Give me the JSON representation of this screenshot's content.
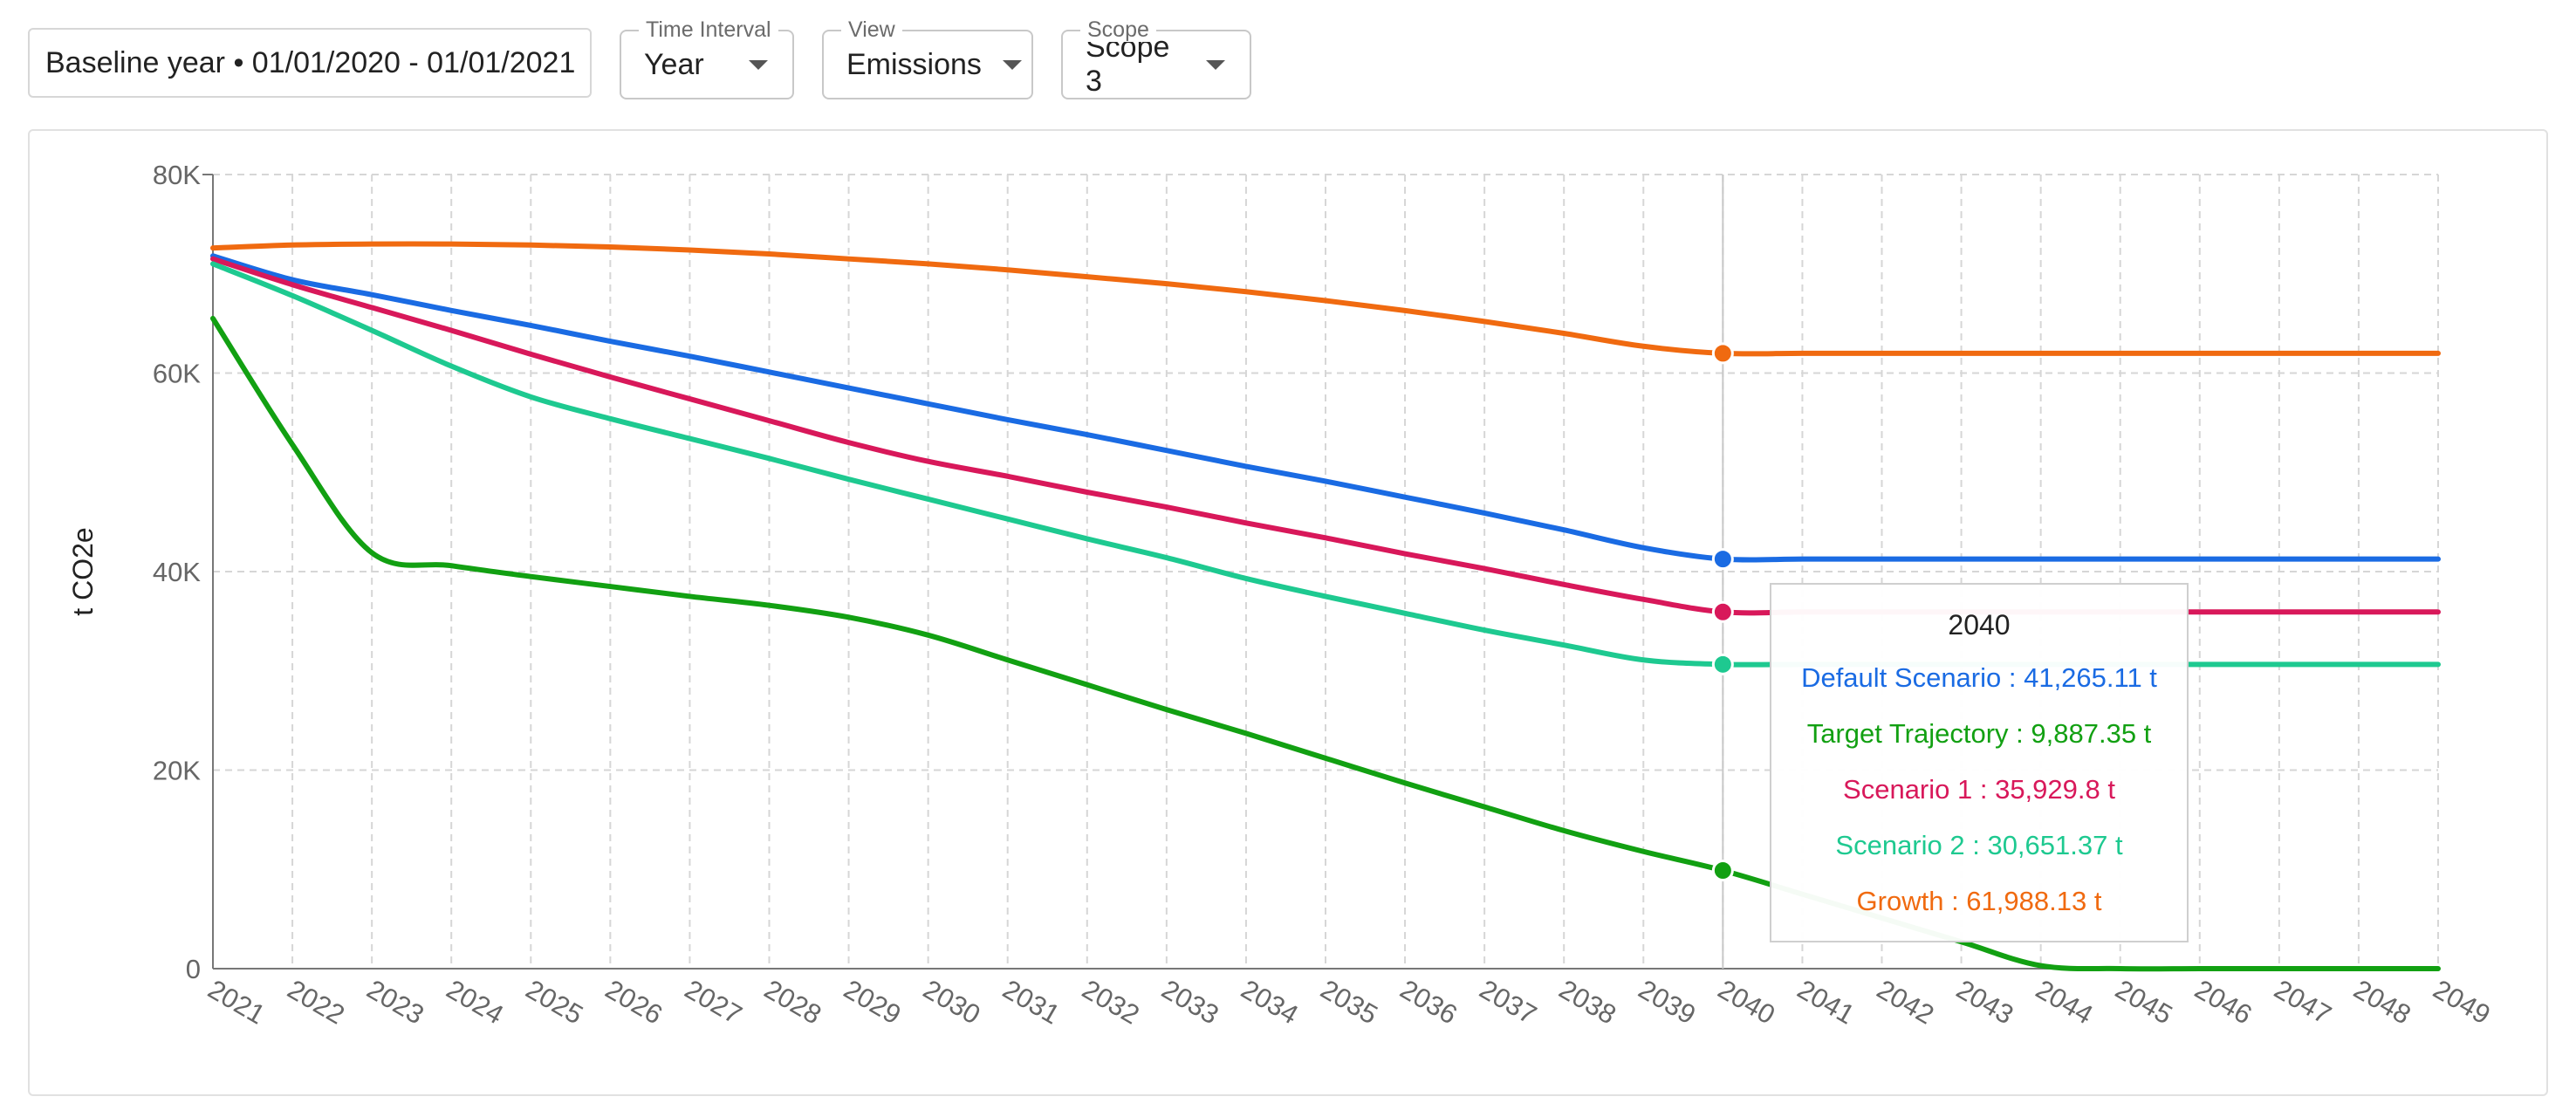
{
  "filters": {
    "baseline_label": "Baseline year • 01/01/2020 - 01/01/2021",
    "time_interval": {
      "legend": "Time Interval",
      "value": "Year"
    },
    "view": {
      "legend": "View",
      "value": "Emissions"
    },
    "scope": {
      "legend": "Scope",
      "value": "Scope 3"
    }
  },
  "colors": {
    "default": "#1a6be3",
    "target": "#12a012",
    "scenario1": "#d8185a",
    "scenario2": "#1ec990",
    "growth": "#f06a10",
    "grid": "#d6d6d6",
    "axis": "#777777",
    "tick": "#666666"
  },
  "chart_data": {
    "type": "line",
    "ylabel": "t CO2e",
    "xlabel": "",
    "ylim": [
      0,
      80000
    ],
    "yticks": [
      0,
      20000,
      40000,
      60000,
      80000
    ],
    "ytick_labels": [
      "0",
      "20K",
      "40K",
      "60K",
      "80K"
    ],
    "grid": true,
    "x": [
      2021,
      2022,
      2023,
      2024,
      2025,
      2026,
      2027,
      2028,
      2029,
      2030,
      2031,
      2032,
      2033,
      2034,
      2035,
      2036,
      2037,
      2038,
      2039,
      2040,
      2041,
      2042,
      2043,
      2044,
      2045,
      2046,
      2047,
      2048,
      2049
    ],
    "x_labels": [
      "2021",
      "2022",
      "2023",
      "2024",
      "2025",
      "2026",
      "2027",
      "2028",
      "2029",
      "2030",
      "2031",
      "2032",
      "2033",
      "2034",
      "2035",
      "2036",
      "2037",
      "2038",
      "2039",
      "2040",
      "2041",
      "2042",
      "2043",
      "2044",
      "2045",
      "2046",
      "2047",
      "2048",
      "2049"
    ],
    "series": [
      {
        "key": "growth",
        "name": "Growth",
        "values": [
          72600,
          72900,
          73000,
          73000,
          72900,
          72700,
          72400,
          72000,
          71500,
          71000,
          70400,
          69700,
          69000,
          68200,
          67300,
          66300,
          65200,
          64000,
          62700,
          61988.13,
          61988.13,
          61988.13,
          61988.13,
          61988.13,
          61988.13,
          61988.13,
          61988.13,
          61988.13,
          61988.13
        ]
      },
      {
        "key": "default",
        "name": "Default Scenario",
        "values": [
          71800,
          69400,
          67900,
          66300,
          64800,
          63200,
          61700,
          60100,
          58500,
          56900,
          55300,
          53800,
          52200,
          50600,
          49100,
          47500,
          45900,
          44200,
          42400,
          41265.11,
          41265.11,
          41265.11,
          41265.11,
          41265.11,
          41265.11,
          41265.11,
          41265.11,
          41265.11,
          41265.11
        ]
      },
      {
        "key": "scenario1",
        "name": "Scenario 1",
        "values": [
          71500,
          68900,
          66600,
          64300,
          61900,
          59600,
          57400,
          55200,
          53000,
          51100,
          49600,
          48000,
          46500,
          44900,
          43400,
          41800,
          40300,
          38700,
          37200,
          35929.8,
          35929.8,
          35929.8,
          35929.8,
          35929.8,
          35929.8,
          35929.8,
          35929.8,
          35929.8,
          35929.8
        ]
      },
      {
        "key": "scenario2",
        "name": "Scenario 2",
        "values": [
          71000,
          67800,
          64300,
          60700,
          57600,
          55400,
          53400,
          51400,
          49300,
          47300,
          45300,
          43300,
          41400,
          39300,
          37500,
          35800,
          34100,
          32600,
          31100,
          30651.37,
          30651.37,
          30651.37,
          30651.37,
          30651.37,
          30651.37,
          30651.37,
          30651.37,
          30651.37,
          30651.37
        ]
      },
      {
        "key": "target",
        "name": "Target Trajectory",
        "values": [
          65500,
          52800,
          41900,
          40600,
          39500,
          38500,
          37500,
          36600,
          35400,
          33600,
          31100,
          28600,
          26100,
          23700,
          21200,
          18700,
          16300,
          13900,
          11800,
          9887.35,
          7500,
          5100,
          2700,
          300,
          0,
          0,
          0,
          0,
          0
        ]
      }
    ],
    "highlight_year": 2040,
    "tooltip": {
      "title": "2040",
      "rows": [
        {
          "key": "default",
          "text": "Default Scenario : 41,265.11 t"
        },
        {
          "key": "target",
          "text": "Target Trajectory : 9,887.35 t"
        },
        {
          "key": "scenario1",
          "text": "Scenario 1 : 35,929.8 t"
        },
        {
          "key": "scenario2",
          "text": "Scenario 2 : 30,651.37 t"
        },
        {
          "key": "growth",
          "text": "Growth : 61,988.13 t"
        }
      ]
    }
  }
}
